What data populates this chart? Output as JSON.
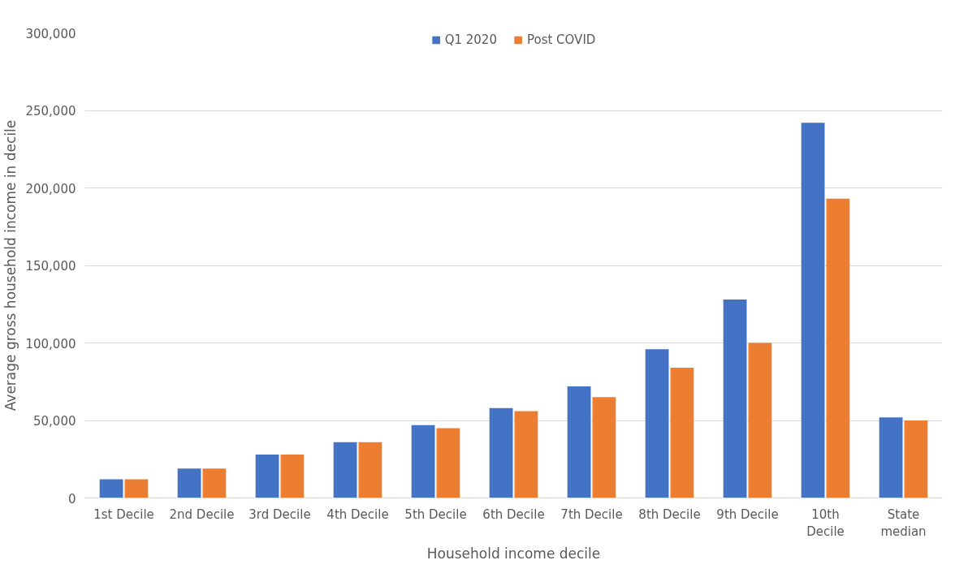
{
  "chart_data": {
    "type": "bar",
    "xlabel": "Household income decile",
    "ylabel": "Average gross household income in decile",
    "categories": [
      "1st Decile",
      "2nd Decile",
      "3rd Decile",
      "4th Decile",
      "5th Decile",
      "6th Decile",
      "7th Decile",
      "8th Decile",
      "9th Decile",
      "10th Decile",
      "State median"
    ],
    "series": [
      {
        "name": "Q1 2020",
        "color": "#4472c4",
        "values": [
          12000,
          19000,
          28000,
          36000,
          47000,
          58000,
          72000,
          96000,
          128000,
          242000,
          52000
        ]
      },
      {
        "name": "Post COVID",
        "color": "#ed7d31",
        "values": [
          12000,
          19000,
          28000,
          36000,
          45000,
          56000,
          65000,
          84000,
          100000,
          193000,
          50000
        ]
      }
    ],
    "ylim": [
      0,
      300000
    ],
    "yticks": [
      {
        "value": 0,
        "label": "0"
      },
      {
        "value": 50000,
        "label": "50,000"
      },
      {
        "value": 100000,
        "label": "100,000"
      },
      {
        "value": 150000,
        "label": "150,000"
      },
      {
        "value": 200000,
        "label": "200,000"
      },
      {
        "value": 250000,
        "label": "250,000"
      },
      {
        "value": 300000,
        "label": "300,000"
      }
    ],
    "grid": "y",
    "legend": "top"
  }
}
